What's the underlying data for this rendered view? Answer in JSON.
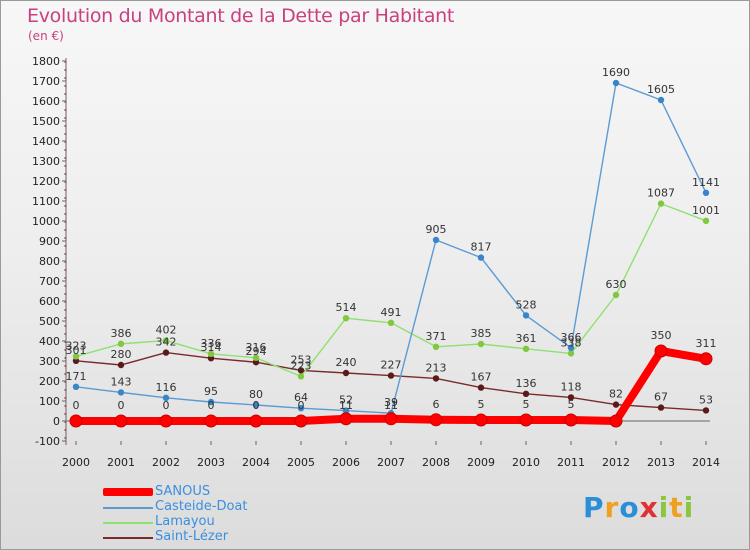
{
  "header": {
    "title": "Evolution du Montant de la Dette par Habitant",
    "unit": "(en €)"
  },
  "logo": {
    "letters": [
      {
        "char": "P",
        "color": "#2a8fd6"
      },
      {
        "char": "r",
        "color": "#f0a020"
      },
      {
        "char": "o",
        "color": "#2a8fd6"
      },
      {
        "char": "x",
        "color": "#e03030"
      },
      {
        "char": "i",
        "color": "#8cc63f"
      },
      {
        "char": "t",
        "color": "#f0a020"
      },
      {
        "char": "i",
        "color": "#8cc63f"
      }
    ]
  },
  "chart_data": {
    "type": "line",
    "title": "Evolution du Montant de la Dette par Habitant",
    "ylabel": "(en €)",
    "xlabel": "",
    "x": [
      2000,
      2001,
      2002,
      2003,
      2004,
      2005,
      2006,
      2007,
      2008,
      2009,
      2010,
      2011,
      2012,
      2013,
      2014
    ],
    "y_ticks": [
      -100,
      0,
      100,
      200,
      300,
      400,
      500,
      600,
      700,
      800,
      900,
      1000,
      1100,
      1200,
      1300,
      1400,
      1500,
      1600,
      1700,
      1800
    ],
    "ylim": [
      -100,
      1800
    ],
    "grid": false,
    "legend_position": "bottom-left",
    "series": [
      {
        "name": "SANOUS",
        "color": "#ff0000",
        "point_color": "#ff0000",
        "values": [
          0,
          0,
          0,
          0,
          0,
          0,
          11,
          11,
          6,
          5,
          5,
          5,
          0,
          350,
          311
        ],
        "labels": [
          null,
          null,
          null,
          null,
          null,
          null,
          null,
          null,
          "6",
          "5",
          "5",
          "5",
          null,
          "350",
          "311"
        ]
      },
      {
        "name": "Casteide-Doat",
        "color": "#5b9bd5",
        "point_color": "#3a85c8",
        "values": [
          171,
          143,
          116,
          95,
          80,
          64,
          52,
          39,
          905,
          817,
          528,
          366,
          1690,
          1605,
          1141
        ],
        "labels": [
          "171",
          "143",
          "116",
          "95",
          "80",
          "64",
          "52",
          "39",
          "905",
          "817",
          "528",
          "366",
          "1690",
          "1605",
          "1141"
        ]
      },
      {
        "name": "Lamayou",
        "color": "#90e070",
        "point_color": "#80c840",
        "values": [
          323,
          386,
          402,
          336,
          316,
          223,
          514,
          491,
          371,
          385,
          361,
          338,
          630,
          1087,
          1001
        ],
        "labels": [
          "323",
          "386",
          "402",
          "336",
          "316",
          "223",
          "514",
          "491",
          "371",
          "385",
          "361",
          "338",
          "630",
          "1087",
          "1001"
        ]
      },
      {
        "name": "Saint-Lézer",
        "color": "#7a2a2a",
        "point_color": "#5a1a1a",
        "values": [
          301,
          280,
          342,
          314,
          294,
          253,
          240,
          227,
          213,
          167,
          136,
          118,
          82,
          67,
          53
        ],
        "labels": [
          "301",
          "280",
          "342",
          "314",
          "294",
          "253",
          "240",
          "227",
          "213",
          "167",
          "136",
          "118",
          "82",
          "67",
          "53"
        ]
      }
    ],
    "sanous_left_labels": [
      "0",
      "0",
      "0",
      "0",
      "0",
      "0",
      "11",
      "11"
    ]
  }
}
